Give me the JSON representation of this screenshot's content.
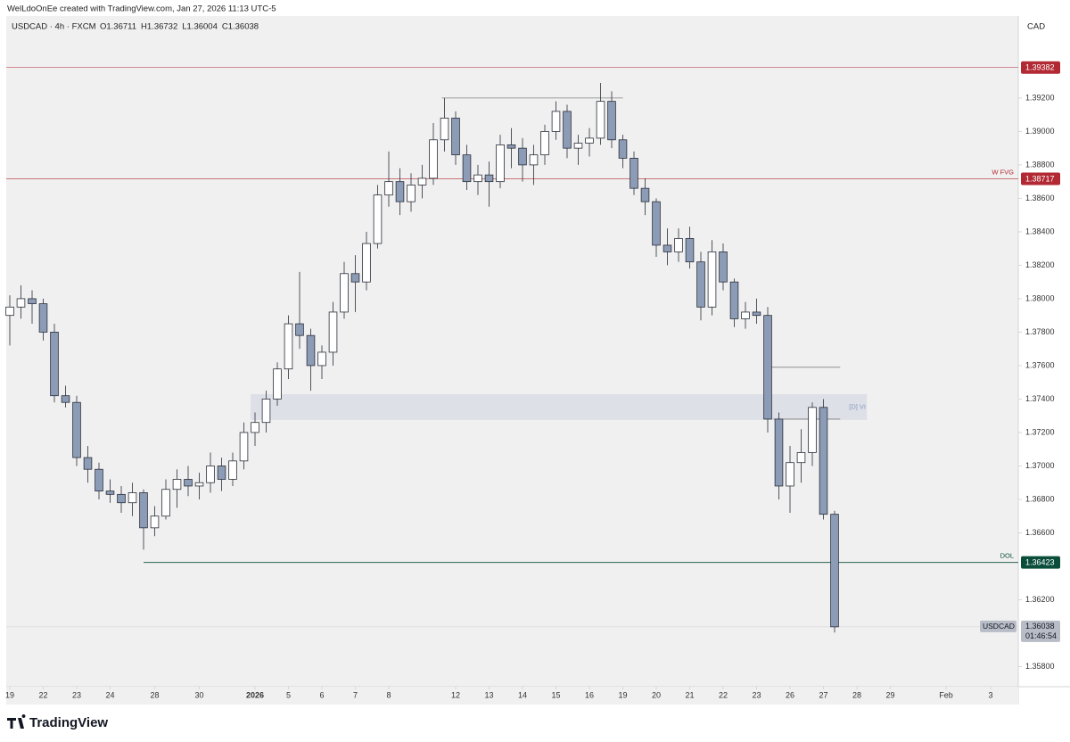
{
  "chart_data": {
    "type": "candlestick",
    "attribution": "WelLdoOnEe created with TradingView.com, Jan 27, 2026 11:13 UTC-5",
    "title": "USDCAD · 4h · FXCM",
    "ohlc_readout": [
      "O1.36711",
      "H1.36732",
      "L1.36004",
      "C1.36038"
    ],
    "currency": "CAD",
    "brand": "TradingView",
    "up_color": "#ffffff",
    "down_color": "#8c9cb6",
    "outline_color": "#2a2e39",
    "x": [
      0,
      2,
      4,
      6,
      8,
      10,
      12,
      14,
      16,
      18,
      20,
      22,
      24,
      26,
      28,
      30,
      32,
      34,
      36,
      38,
      40,
      42,
      44,
      46,
      48,
      50,
      52,
      54,
      56,
      58,
      60,
      62,
      64,
      66,
      68,
      70,
      72,
      74,
      76,
      78,
      80,
      82,
      84,
      86,
      88,
      90,
      92,
      94,
      96,
      98,
      100,
      102,
      104,
      106,
      108,
      110,
      112,
      114,
      116,
      118,
      120,
      122,
      124,
      126,
      128,
      130,
      132,
      134,
      136,
      138,
      140,
      142,
      144,
      146,
      148
    ],
    "ohlc": [
      [
        1.379,
        1.3802,
        1.3772,
        1.3795
      ],
      [
        1.3795,
        1.3808,
        1.3788,
        1.38
      ],
      [
        1.38,
        1.3805,
        1.3785,
        1.3797
      ],
      [
        1.3797,
        1.38,
        1.3775,
        1.378
      ],
      [
        1.378,
        1.3785,
        1.3738,
        1.3742
      ],
      [
        1.3742,
        1.3748,
        1.3735,
        1.3738
      ],
      [
        1.3738,
        1.3742,
        1.37,
        1.3705
      ],
      [
        1.3705,
        1.3712,
        1.369,
        1.3698
      ],
      [
        1.3698,
        1.3702,
        1.368,
        1.3685
      ],
      [
        1.3685,
        1.3692,
        1.3678,
        1.3683
      ],
      [
        1.3683,
        1.3688,
        1.3672,
        1.3678
      ],
      [
        1.3678,
        1.369,
        1.367,
        1.3684
      ],
      [
        1.3684,
        1.3686,
        1.365,
        1.3663
      ],
      [
        1.3663,
        1.3676,
        1.3658,
        1.367
      ],
      [
        1.367,
        1.3692,
        1.3668,
        1.3686
      ],
      [
        1.3686,
        1.3698,
        1.3675,
        1.3692
      ],
      [
        1.3692,
        1.37,
        1.3682,
        1.3688
      ],
      [
        1.3688,
        1.3696,
        1.368,
        1.369
      ],
      [
        1.369,
        1.3708,
        1.3684,
        1.37
      ],
      [
        1.37,
        1.3705,
        1.3685,
        1.3692
      ],
      [
        1.3692,
        1.3708,
        1.3688,
        1.3703
      ],
      [
        1.3703,
        1.3726,
        1.3698,
        1.372
      ],
      [
        1.372,
        1.3732,
        1.3712,
        1.3726
      ],
      [
        1.3726,
        1.3745,
        1.372,
        1.374
      ],
      [
        1.374,
        1.3762,
        1.3736,
        1.3758
      ],
      [
        1.3758,
        1.379,
        1.3752,
        1.3785
      ],
      [
        1.3785,
        1.3816,
        1.377,
        1.3778
      ],
      [
        1.3778,
        1.3782,
        1.3745,
        1.376
      ],
      [
        1.376,
        1.3772,
        1.3752,
        1.3768
      ],
      [
        1.3768,
        1.3798,
        1.376,
        1.3792
      ],
      [
        1.3792,
        1.3822,
        1.3788,
        1.3815
      ],
      [
        1.3815,
        1.3826,
        1.3792,
        1.381
      ],
      [
        1.381,
        1.384,
        1.3805,
        1.3833
      ],
      [
        1.3833,
        1.3868,
        1.383,
        1.3862
      ],
      [
        1.3862,
        1.3888,
        1.3855,
        1.387
      ],
      [
        1.387,
        1.3878,
        1.385,
        1.3858
      ],
      [
        1.3858,
        1.3875,
        1.3852,
        1.3868
      ],
      [
        1.3868,
        1.388,
        1.386,
        1.3872
      ],
      [
        1.3872,
        1.3905,
        1.3868,
        1.3895
      ],
      [
        1.3895,
        1.392,
        1.3888,
        1.3908
      ],
      [
        1.3908,
        1.3912,
        1.388,
        1.3886
      ],
      [
        1.3886,
        1.3892,
        1.3865,
        1.387
      ],
      [
        1.387,
        1.388,
        1.3862,
        1.3874
      ],
      [
        1.3874,
        1.3882,
        1.3855,
        1.387
      ],
      [
        1.387,
        1.3898,
        1.3866,
        1.3892
      ],
      [
        1.3892,
        1.3902,
        1.3878,
        1.389
      ],
      [
        1.389,
        1.3896,
        1.387,
        1.388
      ],
      [
        1.388,
        1.3892,
        1.3868,
        1.3886
      ],
      [
        1.3886,
        1.3904,
        1.388,
        1.39
      ],
      [
        1.39,
        1.3918,
        1.3895,
        1.3912
      ],
      [
        1.3912,
        1.3916,
        1.3884,
        1.389
      ],
      [
        1.389,
        1.3898,
        1.388,
        1.3893
      ],
      [
        1.3893,
        1.3902,
        1.3885,
        1.3896
      ],
      [
        1.3896,
        1.3929,
        1.3892,
        1.3918
      ],
      [
        1.3918,
        1.3924,
        1.389,
        1.3895
      ],
      [
        1.3895,
        1.3898,
        1.3878,
        1.3884
      ],
      [
        1.3884,
        1.3888,
        1.3862,
        1.3866
      ],
      [
        1.3866,
        1.3872,
        1.385,
        1.3858
      ],
      [
        1.3858,
        1.386,
        1.3825,
        1.3832
      ],
      [
        1.3832,
        1.3842,
        1.382,
        1.3828
      ],
      [
        1.3828,
        1.3842,
        1.3822,
        1.3836
      ],
      [
        1.3836,
        1.3843,
        1.3818,
        1.3822
      ],
      [
        1.3822,
        1.3828,
        1.3787,
        1.3795
      ],
      [
        1.3795,
        1.3835,
        1.379,
        1.3828
      ],
      [
        1.3828,
        1.3833,
        1.3805,
        1.381
      ],
      [
        1.381,
        1.3812,
        1.3783,
        1.3788
      ],
      [
        1.3788,
        1.3798,
        1.3782,
        1.3792
      ],
      [
        1.3792,
        1.38,
        1.3785,
        1.379
      ],
      [
        1.379,
        1.3795,
        1.372,
        1.3728
      ],
      [
        1.3728,
        1.3732,
        1.368,
        1.3688
      ],
      [
        1.3688,
        1.3712,
        1.3672,
        1.3702
      ],
      [
        1.3702,
        1.3722,
        1.369,
        1.3708
      ],
      [
        1.3708,
        1.3738,
        1.37,
        1.3735
      ],
      [
        1.3735,
        1.374,
        1.3668,
        1.36711
      ],
      [
        1.36711,
        1.36732,
        1.36004,
        1.36038
      ]
    ],
    "xlim": [
      -0.64,
      180.96
    ],
    "ylim": [
      1.3568,
      1.3969
    ],
    "xticks": [
      {
        "value": 0,
        "label": "19"
      },
      {
        "value": 6,
        "label": "22"
      },
      {
        "value": 12,
        "label": "23"
      },
      {
        "value": 18,
        "label": "24"
      },
      {
        "value": 26,
        "label": "28"
      },
      {
        "value": 34,
        "label": "30"
      },
      {
        "value": 44,
        "label": "2026",
        "emphasis": true
      },
      {
        "value": 50,
        "label": "5"
      },
      {
        "value": 56,
        "label": "6"
      },
      {
        "value": 62,
        "label": "7"
      },
      {
        "value": 68,
        "label": "8"
      },
      {
        "value": 80,
        "label": "12"
      },
      {
        "value": 86,
        "label": "13"
      },
      {
        "value": 92,
        "label": "14"
      },
      {
        "value": 98,
        "label": "15"
      },
      {
        "value": 104,
        "label": "16"
      },
      {
        "value": 110,
        "label": "19"
      },
      {
        "value": 116,
        "label": "20"
      },
      {
        "value": 122,
        "label": "21"
      },
      {
        "value": 128,
        "label": "22"
      },
      {
        "value": 134,
        "label": "23"
      },
      {
        "value": 140,
        "label": "26"
      },
      {
        "value": 146,
        "label": "27"
      },
      {
        "value": 152,
        "label": "28"
      },
      {
        "value": 158,
        "label": "29"
      },
      {
        "value": 168,
        "label": "Feb"
      },
      {
        "value": 176,
        "label": "3"
      }
    ],
    "yticks": [
      {
        "value": 1.358,
        "label": "1.35800"
      },
      {
        "value": 1.362,
        "label": "1.36200"
      },
      {
        "value": 1.366,
        "label": "1.36600"
      },
      {
        "value": 1.368,
        "label": "1.36800"
      },
      {
        "value": 1.37,
        "label": "1.37000"
      },
      {
        "value": 1.372,
        "label": "1.37200"
      },
      {
        "value": 1.374,
        "label": "1.37400"
      },
      {
        "value": 1.376,
        "label": "1.37600"
      },
      {
        "value": 1.378,
        "label": "1.37800"
      },
      {
        "value": 1.38,
        "label": "1.38000"
      },
      {
        "value": 1.382,
        "label": "1.38200"
      },
      {
        "value": 1.384,
        "label": "1.38400"
      },
      {
        "value": 1.386,
        "label": "1.38600"
      },
      {
        "value": 1.388,
        "label": "1.38800"
      },
      {
        "value": 1.39,
        "label": "1.39000"
      },
      {
        "value": 1.392,
        "label": "1.39200"
      }
    ],
    "levels": [
      {
        "value": 1.39382,
        "color": "#b22833"
      },
      {
        "value": 1.38717,
        "color": "#b22833",
        "name": "W FVG"
      },
      {
        "value": 1.36423,
        "color": "#0b4d3b",
        "name": "DOL",
        "from": 24
      }
    ],
    "segments": [
      {
        "value": 1.392,
        "from": 77.5,
        "to": 110
      },
      {
        "value": 1.3759,
        "from": 135.5,
        "to": 149
      },
      {
        "value": 1.3728,
        "from": 137,
        "to": 149
      }
    ],
    "zones": [
      {
        "low": 1.37275,
        "high": 1.37429,
        "from": 43.2,
        "to": 153.8,
        "name": "[D] VI"
      }
    ],
    "last_price": {
      "symbol": "USDCAD",
      "value": 1.36038,
      "countdown": "01:46:54"
    }
  }
}
